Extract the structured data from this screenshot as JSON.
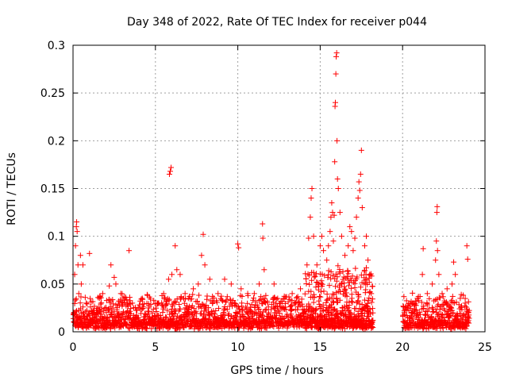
{
  "chart_data": {
    "type": "scatter",
    "title": "Day 348 of 2022, Rate Of TEC Index for receiver p044",
    "xlabel": "GPS time / hours",
    "ylabel": "ROTI / TECUs",
    "xlim": [
      0,
      25
    ],
    "ylim": [
      0,
      0.3
    ],
    "xticks": [
      0,
      5,
      10,
      15,
      20,
      25
    ],
    "yticks": [
      0,
      0.05,
      0.1,
      0.15,
      0.2,
      0.25,
      0.3
    ],
    "xtick_labels": [
      "0",
      "5",
      "10",
      "15",
      "20",
      "25"
    ],
    "ytick_labels": [
      "0",
      "0.05",
      "0.1",
      "0.15",
      "0.2",
      "0.25",
      "0.3"
    ],
    "grid": true,
    "legend": "none",
    "marker": "plus",
    "color": "#ff0000",
    "data_gap_hours": [
      18.2,
      20.0
    ],
    "series": [
      {
        "points": [
          [
            0.05,
            0.02
          ],
          [
            0.1,
            0.06
          ],
          [
            0.15,
            0.09
          ],
          [
            0.2,
            0.11
          ],
          [
            0.22,
            0.115
          ],
          [
            0.25,
            0.105
          ],
          [
            0.3,
            0.07
          ],
          [
            0.35,
            0.04
          ],
          [
            0.45,
            0.08
          ],
          [
            0.5,
            0.05
          ],
          [
            0.6,
            0.07
          ],
          [
            0.8,
            0.03
          ],
          [
            1.0,
            0.082
          ],
          [
            1.2,
            0.02
          ],
          [
            1.6,
            0.035
          ],
          [
            1.8,
            0.04
          ],
          [
            2.2,
            0.048
          ],
          [
            2.3,
            0.07
          ],
          [
            2.5,
            0.057
          ],
          [
            2.6,
            0.05
          ],
          [
            2.9,
            0.04
          ],
          [
            3.2,
            0.036
          ],
          [
            3.4,
            0.085
          ],
          [
            3.6,
            0.03
          ],
          [
            4.2,
            0.035
          ],
          [
            4.6,
            0.025
          ],
          [
            5.2,
            0.03
          ],
          [
            5.5,
            0.04
          ],
          [
            5.8,
            0.055
          ],
          [
            5.85,
            0.165
          ],
          [
            5.9,
            0.168
          ],
          [
            5.95,
            0.172
          ],
          [
            6.0,
            0.06
          ],
          [
            6.2,
            0.09
          ],
          [
            6.3,
            0.065
          ],
          [
            6.5,
            0.06
          ],
          [
            6.8,
            0.04
          ],
          [
            7.0,
            0.035
          ],
          [
            7.3,
            0.045
          ],
          [
            7.6,
            0.05
          ],
          [
            7.8,
            0.08
          ],
          [
            7.9,
            0.102
          ],
          [
            8.0,
            0.07
          ],
          [
            8.3,
            0.055
          ],
          [
            8.8,
            0.04
          ],
          [
            9.2,
            0.055
          ],
          [
            9.6,
            0.05
          ],
          [
            10.0,
            0.092
          ],
          [
            10.05,
            0.088
          ],
          [
            10.2,
            0.045
          ],
          [
            10.6,
            0.04
          ],
          [
            11.0,
            0.04
          ],
          [
            11.3,
            0.05
          ],
          [
            11.5,
            0.113
          ],
          [
            11.52,
            0.098
          ],
          [
            11.6,
            0.065
          ],
          [
            12.2,
            0.05
          ],
          [
            12.8,
            0.035
          ],
          [
            13.3,
            0.04
          ],
          [
            13.8,
            0.045
          ],
          [
            14.2,
            0.07
          ],
          [
            14.3,
            0.098
          ],
          [
            14.4,
            0.12
          ],
          [
            14.45,
            0.14
          ],
          [
            14.5,
            0.15
          ],
          [
            14.6,
            0.1
          ],
          [
            14.8,
            0.07
          ],
          [
            15.0,
            0.09
          ],
          [
            15.1,
            0.1
          ],
          [
            15.2,
            0.085
          ],
          [
            15.4,
            0.075
          ],
          [
            15.5,
            0.09
          ],
          [
            15.6,
            0.105
          ],
          [
            15.65,
            0.12
          ],
          [
            15.7,
            0.135
          ],
          [
            15.75,
            0.125
          ],
          [
            15.8,
            0.095
          ],
          [
            15.85,
            0.122
          ],
          [
            15.88,
            0.178
          ],
          [
            15.9,
            0.236
          ],
          [
            15.92,
            0.24
          ],
          [
            15.95,
            0.27
          ],
          [
            15.97,
            0.288
          ],
          [
            16.0,
            0.292
          ],
          [
            16.02,
            0.2
          ],
          [
            16.05,
            0.16
          ],
          [
            16.1,
            0.15
          ],
          [
            16.2,
            0.125
          ],
          [
            16.3,
            0.1
          ],
          [
            16.5,
            0.08
          ],
          [
            16.7,
            0.09
          ],
          [
            16.8,
            0.11
          ],
          [
            16.9,
            0.105
          ],
          [
            17.0,
            0.085
          ],
          [
            17.1,
            0.098
          ],
          [
            17.2,
            0.12
          ],
          [
            17.3,
            0.14
          ],
          [
            17.35,
            0.157
          ],
          [
            17.4,
            0.148
          ],
          [
            17.45,
            0.165
          ],
          [
            17.5,
            0.19
          ],
          [
            17.55,
            0.13
          ],
          [
            17.7,
            0.09
          ],
          [
            17.8,
            0.1
          ],
          [
            17.9,
            0.075
          ],
          [
            18.0,
            0.06
          ],
          [
            18.1,
            0.04
          ],
          [
            20.1,
            0.02
          ],
          [
            20.3,
            0.025
          ],
          [
            20.6,
            0.03
          ],
          [
            20.9,
            0.035
          ],
          [
            21.2,
            0.06
          ],
          [
            21.25,
            0.087
          ],
          [
            21.5,
            0.04
          ],
          [
            21.8,
            0.05
          ],
          [
            22.0,
            0.075
          ],
          [
            22.05,
            0.095
          ],
          [
            22.08,
            0.125
          ],
          [
            22.1,
            0.131
          ],
          [
            22.12,
            0.085
          ],
          [
            22.2,
            0.06
          ],
          [
            22.4,
            0.04
          ],
          [
            22.7,
            0.045
          ],
          [
            23.0,
            0.05
          ],
          [
            23.1,
            0.073
          ],
          [
            23.2,
            0.06
          ],
          [
            23.5,
            0.035
          ],
          [
            23.8,
            0.03
          ],
          [
            23.9,
            0.09
          ],
          [
            23.95,
            0.076
          ],
          [
            24.0,
            0.02
          ]
        ]
      }
    ]
  }
}
